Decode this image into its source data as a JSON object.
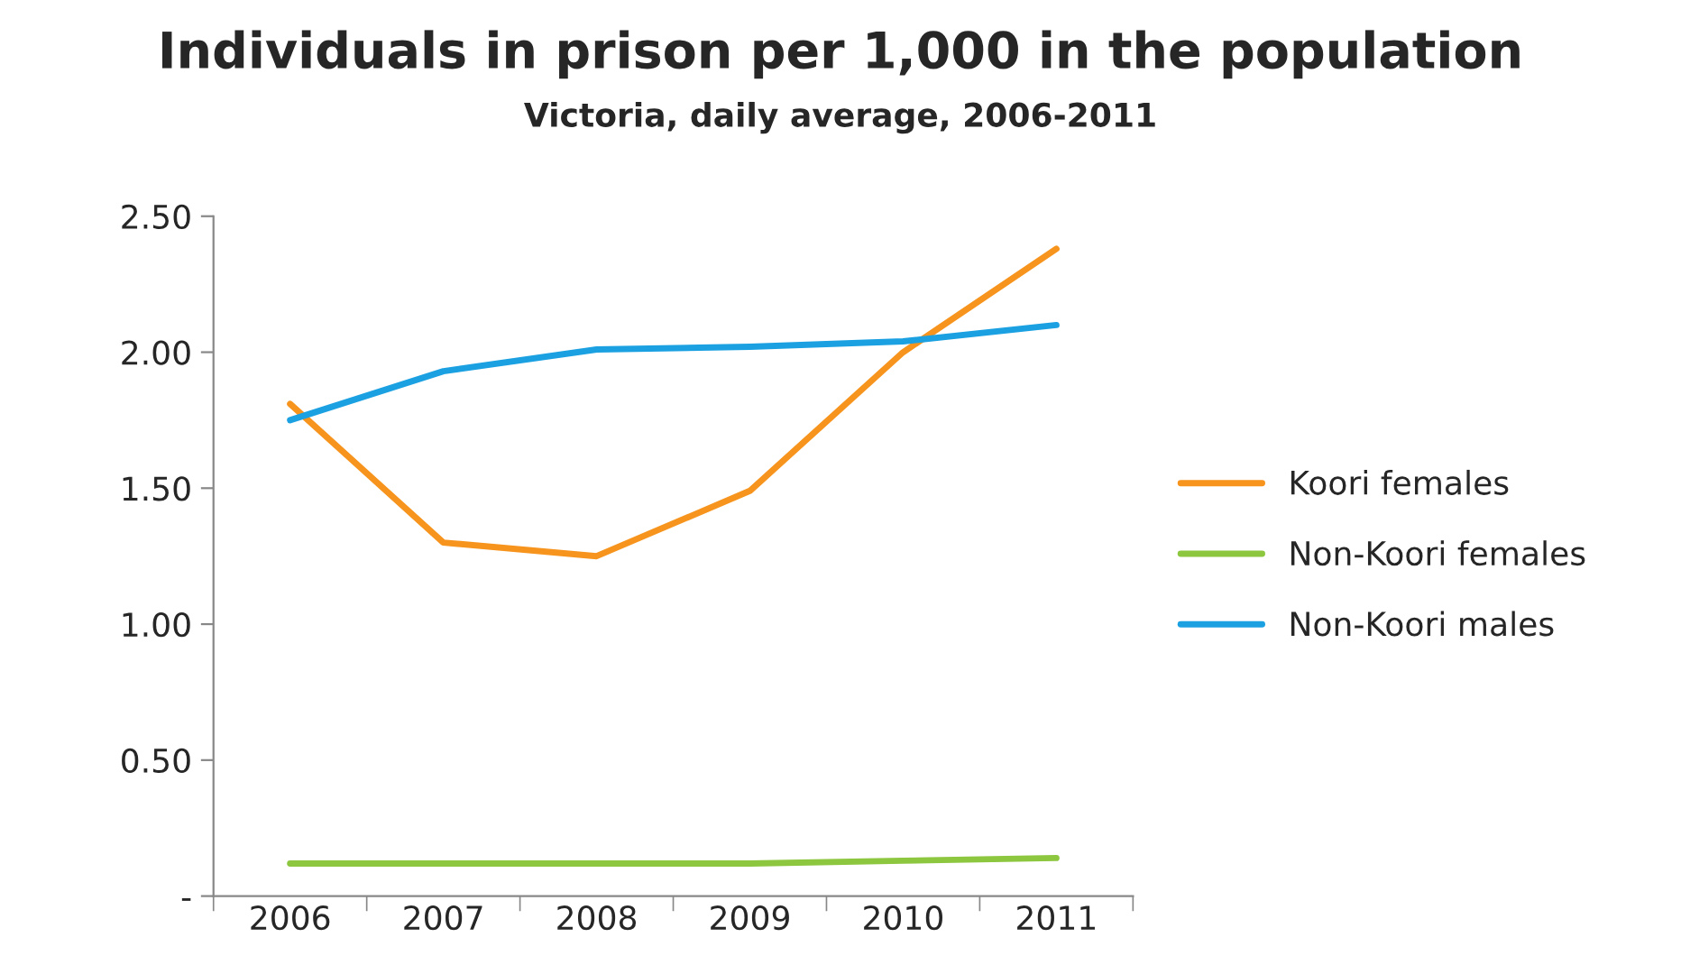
{
  "chart_data": {
    "type": "line",
    "title": "Individuals in prison per 1,000 in the population",
    "subtitle": "Victoria, daily average, 2006-2011",
    "categories": [
      "2006",
      "2007",
      "2008",
      "2009",
      "2010",
      "2011"
    ],
    "series": [
      {
        "name": "Koori females",
        "color": "#f7941d",
        "values": [
          1.81,
          1.3,
          1.25,
          1.49,
          2.0,
          2.38
        ]
      },
      {
        "name": "Non-Koori females",
        "color": "#8dc63f",
        "values": [
          0.12,
          0.12,
          0.12,
          0.12,
          0.13,
          0.14
        ]
      },
      {
        "name": "Non-Koori males",
        "color": "#1ba1e2",
        "values": [
          1.75,
          1.93,
          2.01,
          2.02,
          2.04,
          2.1
        ]
      }
    ],
    "ylim": [
      0,
      2.5
    ],
    "yticks": [
      {
        "value": 0,
        "label": "-"
      },
      {
        "value": 0.5,
        "label": "0.50"
      },
      {
        "value": 1,
        "label": "1.00"
      },
      {
        "value": 1.5,
        "label": "1.50"
      },
      {
        "value": 2,
        "label": "2.00"
      },
      {
        "value": 2.5,
        "label": "2.50"
      }
    ],
    "grid": false,
    "legend": "right",
    "marker": "none",
    "line_style": "solid"
  }
}
